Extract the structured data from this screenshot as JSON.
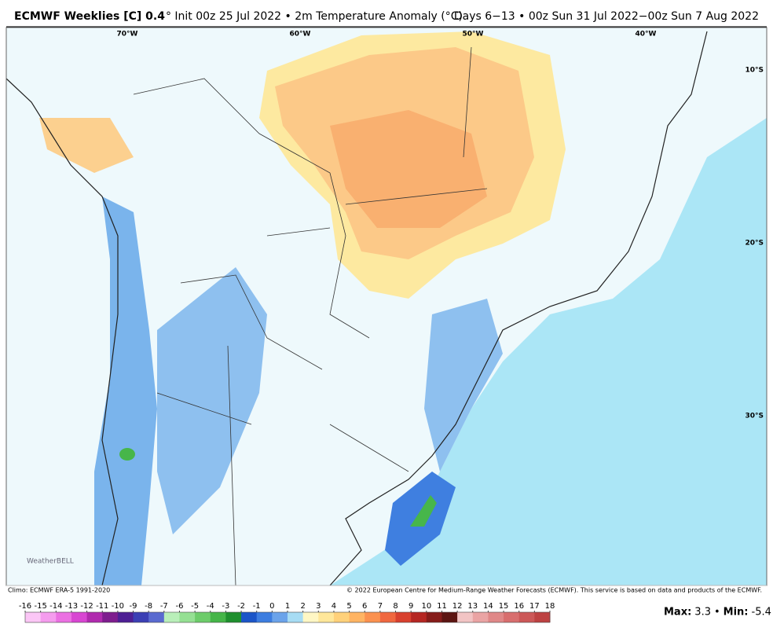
{
  "header": {
    "title_bold": "ECMWF Weeklies [C] 0.4",
    "title_rest": "° Init 00z 25 Jul 2022 • 2m Temperature Anomaly (°C)",
    "valid": "Days 6−13 • 00z Sun 31 Jul 2022−00z Sun 7 Aug 2022"
  },
  "map": {
    "lon_labels": [
      "70°W",
      "60°W",
      "50°W",
      "40°W"
    ],
    "lat_labels": [
      "10°S",
      "20°S",
      "30°S"
    ],
    "logo": "WeatherBELL"
  },
  "footer": {
    "climo": "Climo: ECMWF ERA-5 1991-2020",
    "copyright": "© 2022 European Centre for Medium-Range Weather Forecasts (ECMWF). This service is based on data and products of the ECMWF."
  },
  "colorbar": {
    "ticks": [
      -16,
      -15,
      -14,
      -13,
      -12,
      -11,
      -10,
      -9,
      -8,
      -7,
      -6,
      -5,
      -4,
      -3,
      -2,
      -1,
      0,
      1,
      2,
      3,
      4,
      5,
      6,
      7,
      8,
      9,
      10,
      11,
      12,
      13,
      14,
      15,
      16,
      17,
      18
    ],
    "colors": [
      "#fbc6f6",
      "#f59cee",
      "#eb70e2",
      "#d846d2",
      "#b02aae",
      "#7e1d8e",
      "#4e1f94",
      "#3b3fb4",
      "#5a6ad0",
      "#b9efb9",
      "#95e093",
      "#6dcc6a",
      "#45b548",
      "#1f8f2e",
      "#1b55c8",
      "#3d7de0",
      "#6ba3ea",
      "#a7dcf4",
      "#fff7c4",
      "#ffe79a",
      "#ffd17a",
      "#ffb463",
      "#fb914f",
      "#f0673f",
      "#d8402e",
      "#b52622",
      "#861c1a",
      "#5c1512",
      "#f2c4c4",
      "#eaa4a4",
      "#e08888",
      "#d86e6e",
      "#cc5858",
      "#bd4242"
    ]
  },
  "stats": {
    "max_label": "Max:",
    "max": 3.3,
    "separator": "•",
    "min_label": "Min:",
    "min": -5.4
  }
}
